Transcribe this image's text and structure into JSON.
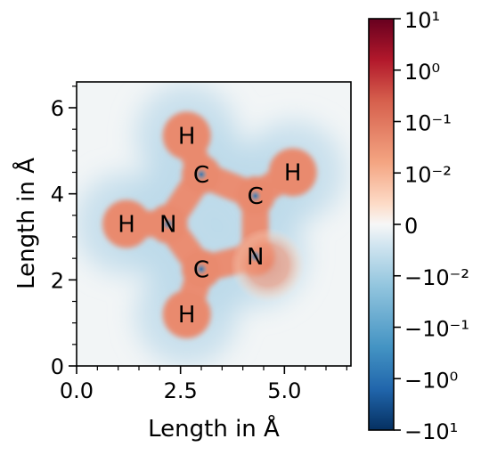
{
  "chart_data": {
    "type": "heatmap",
    "xlabel": "Length in Å",
    "ylabel": "Length in Å",
    "xlim": [
      0,
      6.6
    ],
    "ylim": [
      0,
      6.6
    ],
    "x_ticks": [
      {
        "value": 0,
        "label": "0.0"
      },
      {
        "value": 2.5,
        "label": "2.5"
      },
      {
        "value": 5,
        "label": "5.0"
      }
    ],
    "y_ticks": [
      {
        "value": 0,
        "label": "0"
      },
      {
        "value": 2,
        "label": "2"
      },
      {
        "value": 4,
        "label": "4"
      },
      {
        "value": 6,
        "label": "6"
      }
    ],
    "colorbar": {
      "scale": "symlog",
      "colormap": "RdBu_r",
      "range": [
        -10,
        10
      ],
      "ticks": [
        {
          "value": 10,
          "label": "10¹"
        },
        {
          "value": 1,
          "label": "10⁰"
        },
        {
          "value": 0.1,
          "label": "10⁻¹"
        },
        {
          "value": 0.01,
          "label": "10⁻²"
        },
        {
          "value": 0,
          "label": "0"
        },
        {
          "value": -0.01,
          "label": "−10⁻²"
        },
        {
          "value": -0.1,
          "label": "−10⁻¹"
        },
        {
          "value": -1,
          "label": "−10⁰"
        },
        {
          "value": -10,
          "label": "−10¹"
        }
      ]
    },
    "atoms": [
      {
        "label": "H",
        "x": 2.65,
        "y": 5.35
      },
      {
        "label": "C",
        "x": 3.0,
        "y": 4.45
      },
      {
        "label": "H",
        "x": 5.2,
        "y": 4.5
      },
      {
        "label": "C",
        "x": 4.3,
        "y": 3.95
      },
      {
        "label": "H",
        "x": 1.2,
        "y": 3.3
      },
      {
        "label": "N",
        "x": 2.2,
        "y": 3.3
      },
      {
        "label": "N",
        "x": 4.3,
        "y": 2.55
      },
      {
        "label": "C",
        "x": 3.0,
        "y": 2.25
      },
      {
        "label": "H",
        "x": 2.65,
        "y": 1.2
      }
    ],
    "bonds": [
      [
        0,
        1
      ],
      [
        1,
        3
      ],
      [
        2,
        3
      ],
      [
        3,
        6
      ],
      [
        6,
        7
      ],
      [
        7,
        5
      ],
      [
        5,
        1
      ],
      [
        4,
        5
      ],
      [
        7,
        8
      ]
    ]
  }
}
